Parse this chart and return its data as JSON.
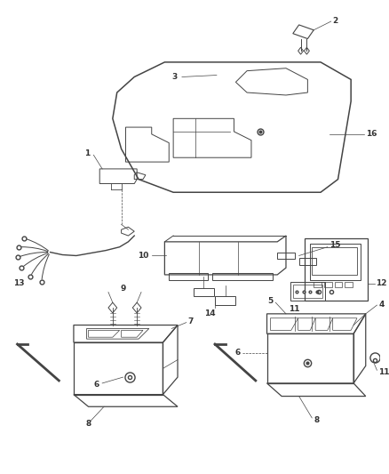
{
  "bg_color": "#ffffff",
  "lc": "#444444",
  "label_color": "#333333",
  "fig_w": 4.38,
  "fig_h": 5.33,
  "dpi": 100,
  "fs": 6.5
}
